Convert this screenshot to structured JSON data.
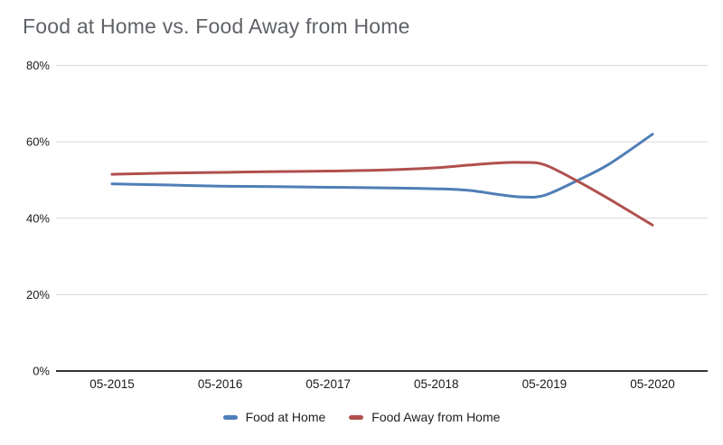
{
  "chart_data": {
    "type": "line",
    "smooth": true,
    "title": "Food at Home vs. Food Away from Home",
    "categories": [
      "05-2015",
      "05-2016",
      "05-2017",
      "05-2018",
      "05-2019",
      "05-2020"
    ],
    "yticks": [
      0,
      20,
      40,
      60,
      80
    ],
    "ytick_labels": [
      "0%",
      "20%",
      "40%",
      "60%",
      "80%"
    ],
    "ylim": [
      0,
      80
    ],
    "xlabel": "",
    "ylabel": "",
    "grid": "horizontal",
    "legend_position": "bottom",
    "colors": {
      "grid": "#d9d9d9",
      "axis": "#333333",
      "title_text": "#5f6368",
      "tick_text": "#1a1a1a"
    },
    "series": [
      {
        "name": "Food at Home",
        "color": "#4f7eb6",
        "values": [
          49.0,
          48.4,
          48.1,
          47.7,
          46.0,
          62.0
        ],
        "curve": [
          [
            0,
            49.0
          ],
          [
            0.5,
            48.7
          ],
          [
            1,
            48.4
          ],
          [
            1.5,
            48.25
          ],
          [
            2,
            48.1
          ],
          [
            2.5,
            47.95
          ],
          [
            3,
            47.7
          ],
          [
            3.3,
            47.3
          ],
          [
            3.6,
            46.1
          ],
          [
            3.8,
            45.55
          ],
          [
            4,
            46.0
          ],
          [
            4.3,
            49.8
          ],
          [
            4.6,
            54.2
          ],
          [
            5,
            62.0
          ]
        ]
      },
      {
        "name": "Food Away from Home",
        "color": "#b0504d",
        "values": [
          51.5,
          52.0,
          52.4,
          53.2,
          54.0,
          38.2
        ],
        "curve": [
          [
            0,
            51.5
          ],
          [
            0.5,
            51.8
          ],
          [
            1,
            52.0
          ],
          [
            1.5,
            52.2
          ],
          [
            2,
            52.35
          ],
          [
            2.5,
            52.6
          ],
          [
            3,
            53.2
          ],
          [
            3.3,
            53.9
          ],
          [
            3.6,
            54.5
          ],
          [
            3.8,
            54.6
          ],
          [
            4,
            54.0
          ],
          [
            4.3,
            49.8
          ],
          [
            4.6,
            45.0
          ],
          [
            5,
            38.2
          ]
        ]
      }
    ]
  }
}
